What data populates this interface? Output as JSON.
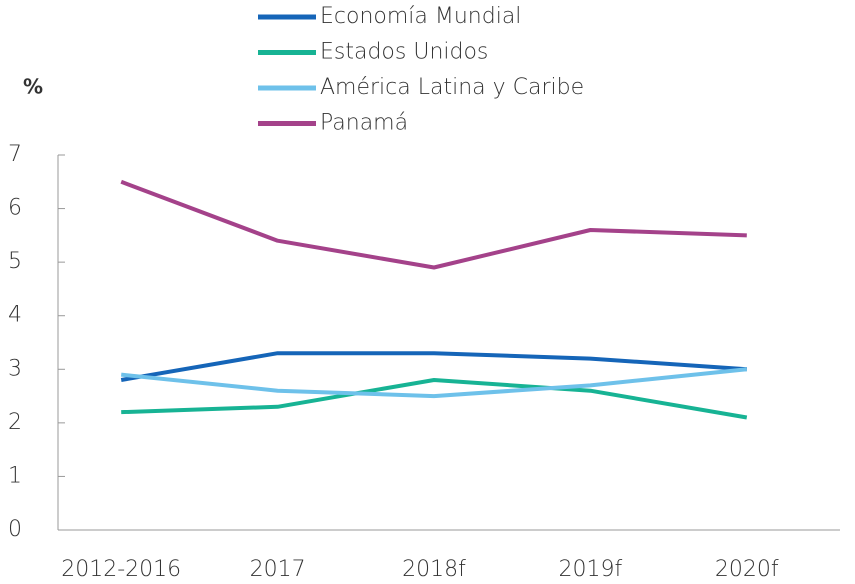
{
  "chart_data": {
    "type": "line",
    "ylabel": "%",
    "categories": [
      "2012-2016",
      "2017",
      "2018f",
      "2019f",
      "2020f"
    ],
    "series": [
      {
        "name": "Economía Mundial",
        "color": "#1565b8",
        "values": [
          2.8,
          3.3,
          3.3,
          3.2,
          3.0
        ]
      },
      {
        "name": "Estados Unidos",
        "color": "#17b394",
        "values": [
          2.2,
          2.3,
          2.8,
          2.6,
          2.1
        ]
      },
      {
        "name": "América Latina y Caribe",
        "color": "#6ec1ea",
        "values": [
          2.9,
          2.6,
          2.5,
          2.7,
          3.0
        ]
      },
      {
        "name": "Panamá",
        "color": "#a4428a",
        "values": [
          6.5,
          5.4,
          4.9,
          5.6,
          5.5
        ]
      }
    ],
    "ylim": [
      0,
      7
    ],
    "yticks": [
      0,
      1,
      2,
      3,
      4,
      5,
      6,
      7
    ],
    "grid": false,
    "legend": "top"
  }
}
